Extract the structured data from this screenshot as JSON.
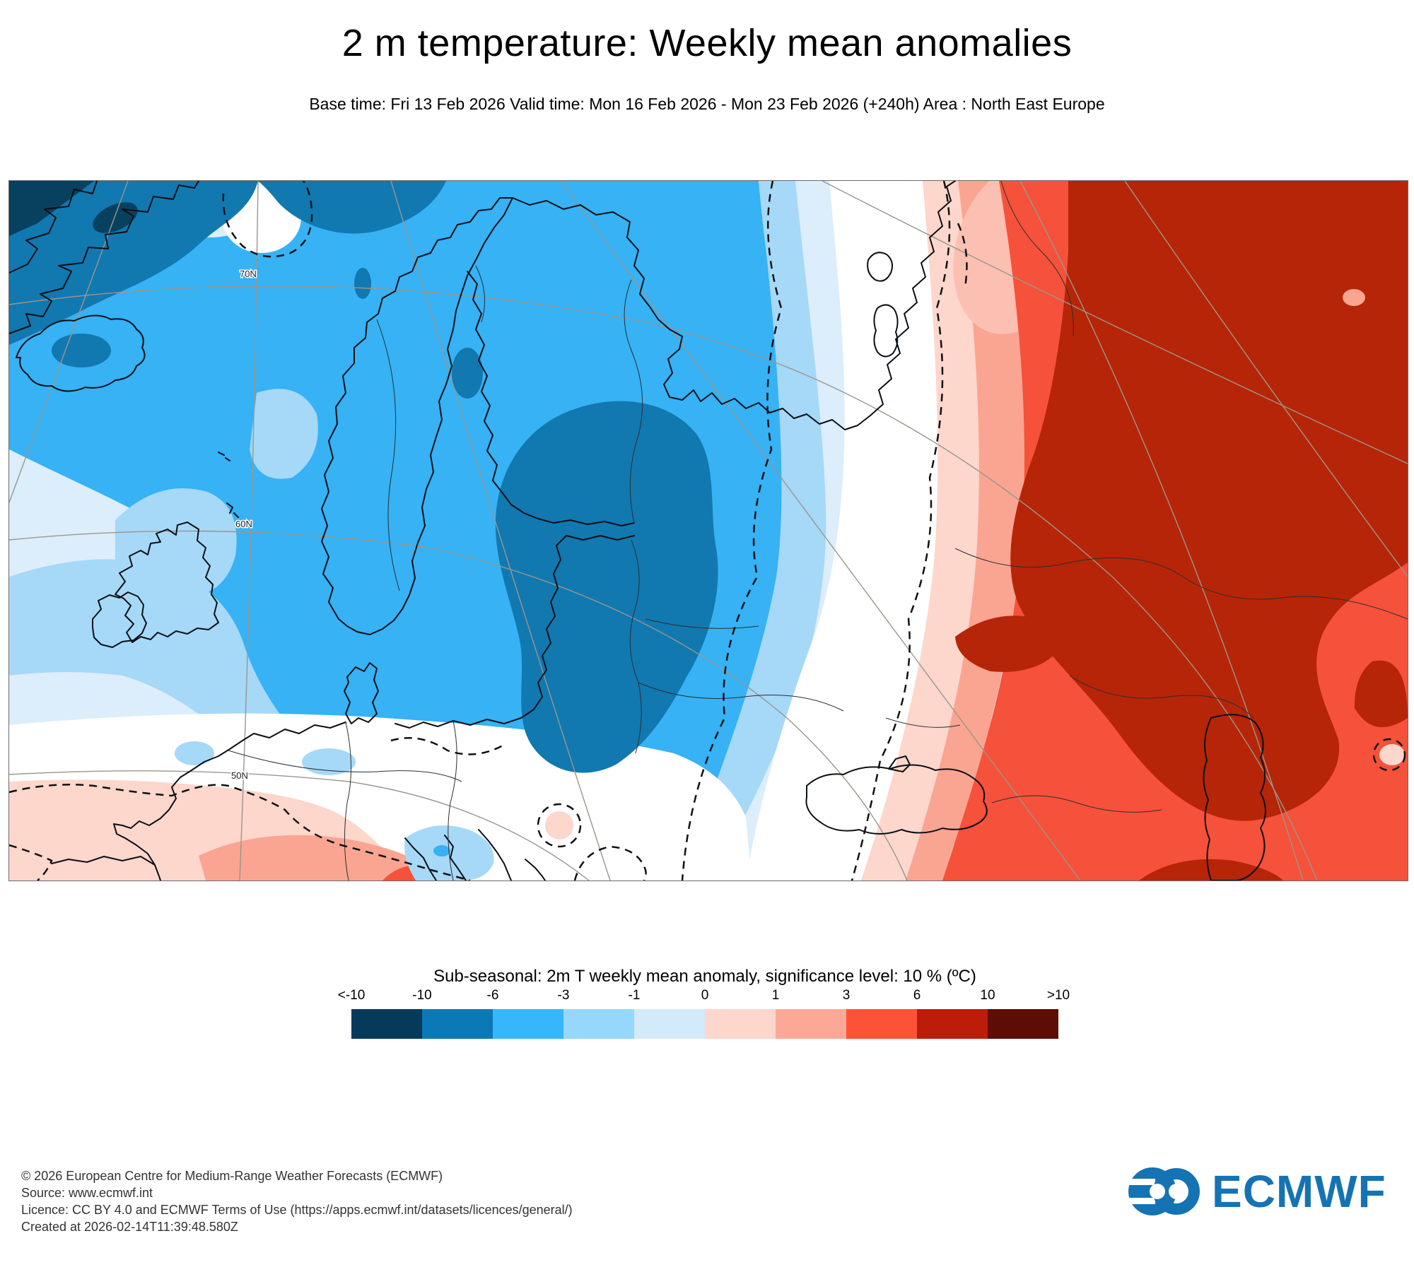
{
  "page": {
    "title": "2 m temperature: Weekly mean anomalies",
    "subtitle": "Base time: Fri 13 Feb 2026 Valid time: Mon 16 Feb 2026 - Mon 23 Feb 2026 (+240h) Area : North East Europe"
  },
  "map": {
    "lat_labels": [
      "70N",
      "60N",
      "50N"
    ]
  },
  "legend": {
    "title": "Sub-seasonal: 2m T weekly mean anomaly, significance level: 10 % (ºC)"
  },
  "colorbar": {
    "labels": [
      "<-10",
      "-10",
      "-6",
      "-3",
      "-1",
      "0",
      "1",
      "3",
      "6",
      "10",
      ">10"
    ],
    "colors": [
      "#053a5b",
      "#0b79b5",
      "#36b6fb",
      "#95d8fb",
      "#d3eafb",
      "#fdd6cc",
      "#fca897",
      "#fc5336",
      "#bc1d08",
      "#5d0d03"
    ],
    "unit": "ºC"
  },
  "footer": {
    "lines": [
      "© 2026 European Centre for Medium-Range Weather Forecasts (ECMWF)",
      "Source: www.ecmwf.int",
      "Licence: CC BY 4.0 and ECMWF Terms of Use (https://apps.ecmwf.int/datasets/licences/general/)",
      "Created at 2026-02-14T11:39:48.580Z"
    ]
  },
  "logo": {
    "text": "ECMWF",
    "color": "#1673b3"
  }
}
